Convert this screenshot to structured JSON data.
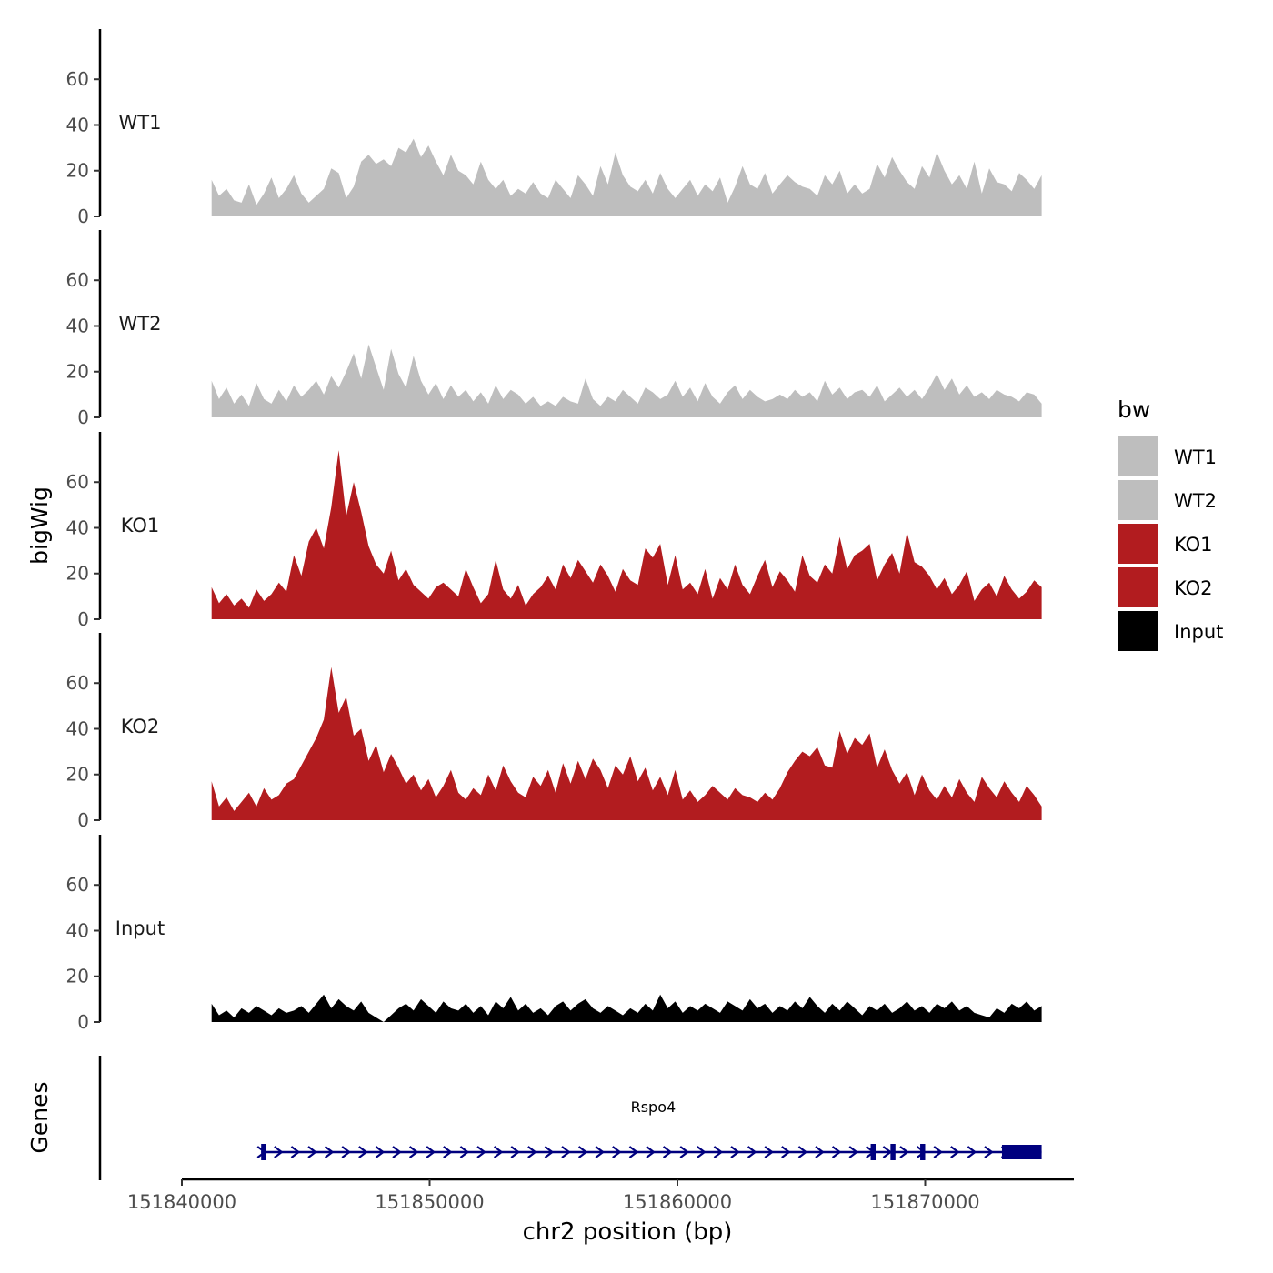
{
  "chart_data": {
    "type": "area",
    "title": "",
    "ylabel": "bigWig",
    "xlabel": "chr2 position (bp)",
    "ylim": [
      0,
      78
    ],
    "yticks": [
      0,
      20,
      40,
      60
    ],
    "xlim": [
      151840000,
      151876000
    ],
    "xticks": [
      151840000,
      151850000,
      151860000,
      151870000
    ],
    "xtick_labels": [
      "151840000",
      "151850000",
      "151860000",
      "151870000"
    ],
    "data_range": [
      151841200,
      151874700
    ],
    "legend": {
      "title": "bw",
      "position": "right",
      "entries": [
        {
          "label": "WT1",
          "color": "#bebebe"
        },
        {
          "label": "WT2",
          "color": "#bebebe"
        },
        {
          "label": "KO1",
          "color": "#b21c1f"
        },
        {
          "label": "KO2",
          "color": "#b21c1f"
        },
        {
          "label": "Input",
          "color": "#000000"
        }
      ]
    },
    "series": [
      {
        "name": "WT1",
        "color": "#bebebe",
        "values": [
          16,
          9,
          12,
          7,
          6,
          14,
          5,
          10,
          17,
          8,
          12,
          18,
          10,
          6,
          9,
          12,
          21,
          19,
          8,
          13,
          24,
          27,
          23,
          25,
          22,
          30,
          28,
          34,
          26,
          31,
          24,
          18,
          27,
          20,
          18,
          14,
          24,
          16,
          12,
          16,
          9,
          12,
          10,
          15,
          10,
          8,
          16,
          12,
          8,
          18,
          14,
          9,
          22,
          14,
          28,
          18,
          13,
          11,
          16,
          10,
          19,
          12,
          8,
          12,
          16,
          9,
          14,
          11,
          17,
          6,
          13,
          22,
          14,
          12,
          19,
          10,
          14,
          18,
          15,
          13,
          12,
          9,
          18,
          14,
          20,
          10,
          14,
          10,
          12,
          23,
          17,
          26,
          20,
          15,
          12,
          22,
          17,
          28,
          20,
          14,
          18,
          12,
          24,
          10,
          21,
          15,
          14,
          11,
          19,
          16,
          12,
          18
        ]
      },
      {
        "name": "WT2",
        "color": "#bebebe",
        "values": [
          16,
          8,
          13,
          6,
          10,
          5,
          15,
          8,
          6,
          12,
          7,
          14,
          9,
          12,
          16,
          10,
          18,
          13,
          20,
          28,
          17,
          32,
          22,
          12,
          30,
          19,
          13,
          27,
          16,
          10,
          15,
          8,
          14,
          9,
          12,
          7,
          11,
          6,
          14,
          8,
          12,
          10,
          6,
          9,
          5,
          7,
          5,
          9,
          7,
          6,
          17,
          8,
          5,
          9,
          7,
          12,
          9,
          6,
          13,
          11,
          8,
          10,
          16,
          9,
          13,
          7,
          15,
          9,
          6,
          11,
          14,
          8,
          12,
          9,
          7,
          8,
          10,
          8,
          12,
          9,
          11,
          7,
          16,
          10,
          13,
          8,
          11,
          12,
          9,
          14,
          7,
          10,
          13,
          9,
          12,
          8,
          13,
          19,
          12,
          17,
          10,
          14,
          9,
          11,
          8,
          12,
          10,
          9,
          7,
          11,
          10,
          6
        ]
      },
      {
        "name": "KO1",
        "color": "#b21c1f",
        "values": [
          14,
          7,
          11,
          6,
          9,
          5,
          13,
          8,
          11,
          16,
          12,
          28,
          19,
          34,
          40,
          31,
          49,
          74,
          45,
          60,
          47,
          32,
          24,
          20,
          30,
          17,
          22,
          15,
          12,
          9,
          14,
          16,
          13,
          10,
          22,
          14,
          7,
          11,
          26,
          13,
          9,
          15,
          6,
          11,
          14,
          19,
          13,
          24,
          18,
          26,
          21,
          16,
          24,
          19,
          12,
          22,
          17,
          15,
          31,
          27,
          33,
          15,
          28,
          13,
          16,
          11,
          22,
          9,
          18,
          13,
          24,
          15,
          11,
          19,
          26,
          14,
          21,
          17,
          12,
          28,
          19,
          16,
          24,
          20,
          36,
          22,
          28,
          30,
          33,
          17,
          24,
          29,
          20,
          38,
          25,
          23,
          19,
          13,
          18,
          11,
          15,
          21,
          8,
          13,
          16,
          10,
          19,
          13,
          9,
          12,
          17,
          14
        ]
      },
      {
        "name": "KO2",
        "color": "#b21c1f",
        "values": [
          17,
          6,
          10,
          4,
          8,
          12,
          6,
          14,
          9,
          11,
          16,
          18,
          24,
          30,
          36,
          44,
          67,
          47,
          54,
          37,
          40,
          26,
          33,
          21,
          29,
          23,
          16,
          20,
          13,
          18,
          10,
          15,
          22,
          12,
          9,
          14,
          11,
          20,
          13,
          24,
          17,
          12,
          10,
          19,
          15,
          22,
          12,
          25,
          16,
          26,
          18,
          27,
          22,
          14,
          24,
          20,
          28,
          17,
          23,
          13,
          19,
          11,
          22,
          9,
          13,
          8,
          11,
          15,
          12,
          9,
          14,
          11,
          10,
          8,
          12,
          9,
          14,
          21,
          26,
          30,
          28,
          32,
          24,
          23,
          39,
          29,
          36,
          33,
          38,
          23,
          31,
          22,
          16,
          21,
          11,
          20,
          13,
          9,
          15,
          10,
          18,
          12,
          8,
          19,
          14,
          10,
          17,
          12,
          8,
          15,
          11,
          6
        ]
      },
      {
        "name": "Input",
        "color": "#000000",
        "values": [
          8,
          3,
          5,
          2,
          6,
          4,
          7,
          5,
          3,
          6,
          4,
          5,
          7,
          4,
          8,
          12,
          6,
          10,
          7,
          5,
          9,
          4,
          2,
          0,
          3,
          6,
          8,
          5,
          10,
          7,
          4,
          9,
          6,
          5,
          8,
          4,
          7,
          3,
          9,
          6,
          11,
          5,
          8,
          4,
          6,
          3,
          7,
          9,
          5,
          8,
          10,
          6,
          4,
          7,
          5,
          3,
          6,
          4,
          8,
          5,
          12,
          6,
          9,
          4,
          7,
          5,
          8,
          6,
          4,
          9,
          7,
          5,
          10,
          6,
          8,
          4,
          7,
          5,
          9,
          6,
          11,
          7,
          4,
          8,
          5,
          9,
          6,
          3,
          7,
          5,
          8,
          4,
          6,
          9,
          5,
          7,
          4,
          8,
          6,
          9,
          5,
          7,
          4,
          3,
          2,
          6,
          4,
          8,
          6,
          9,
          5,
          7
        ]
      }
    ],
    "gene_track": {
      "panel_label": "Genes",
      "gene_name": "Rspo4",
      "strand": "+",
      "start": 151843200,
      "end": 151874700,
      "exons": [
        [
          151843200,
          151843400
        ],
        [
          151867800,
          151868000
        ],
        [
          151868600,
          151868800
        ],
        [
          151869800,
          151870000
        ],
        [
          151873100,
          151874700
        ]
      ]
    }
  }
}
